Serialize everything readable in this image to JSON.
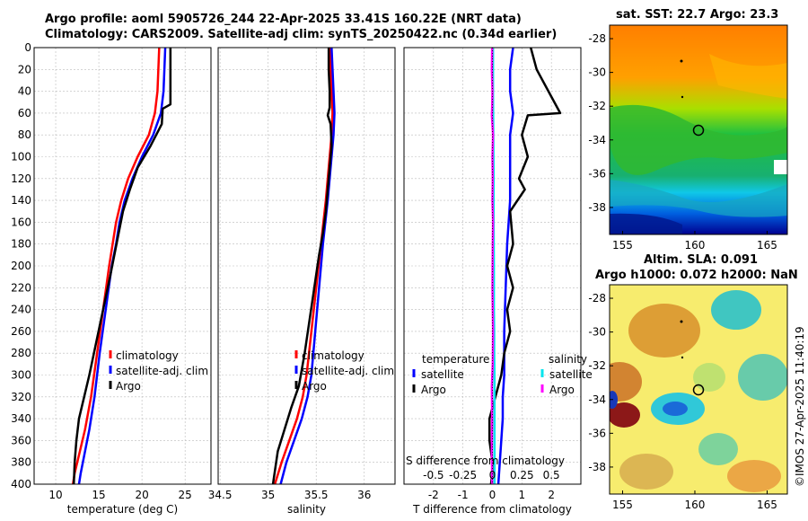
{
  "header": {
    "title_line1": "Argo profile: aoml 5905726_244 22-Apr-2025 33.41S 160.22E (NRT data)",
    "title_line2": "Climatology: CARS2009. Satellite-adj clim: synTS_20250422.nc (0.34d earlier)"
  },
  "maps": {
    "sst_title": "sat. SST: 22.7 Argo: 23.3",
    "sla_title_line1": "Altim. SLA: 0.091",
    "sla_title_line2": "Argo h1000: 0.072 h2000: NaN",
    "lat_ticks": [
      -28,
      -30,
      -32,
      -34,
      -36,
      -38
    ],
    "lon_ticks": [
      155,
      160,
      165
    ],
    "argo_position": {
      "lon": 160.22,
      "lat": -33.41
    }
  },
  "stamp": "©IMOS 27-Apr-2025 11:40:19",
  "chart_data": [
    {
      "type": "line",
      "name": "temperature",
      "xlabel": "temperature (deg C)",
      "ylabel": "",
      "xlim": [
        7.5,
        28
      ],
      "ylim": [
        400,
        0
      ],
      "xticks": [
        10,
        15,
        20,
        25
      ],
      "yticks": [
        0,
        20,
        40,
        60,
        80,
        100,
        120,
        140,
        160,
        180,
        200,
        220,
        240,
        260,
        280,
        300,
        320,
        340,
        360,
        380,
        400
      ],
      "grid": true,
      "legend": {
        "position": "lower-right",
        "entries": [
          "climatology",
          "satellite-adj. clim",
          "Argo"
        ]
      },
      "series": [
        {
          "name": "climatology",
          "color": "#ff0000",
          "x": [
            22.0,
            21.9,
            21.8,
            21.5,
            20.8,
            19.5,
            18.4,
            17.6,
            17.0,
            16.6,
            16.2,
            15.5,
            14.8,
            14.1,
            13.4,
            12.8,
            12.2,
            12.0
          ],
          "y": [
            0,
            20,
            40,
            60,
            80,
            100,
            120,
            140,
            160,
            180,
            200,
            240,
            280,
            320,
            350,
            370,
            390,
            400
          ]
        },
        {
          "name": "satellite-adj. clim",
          "color": "#0000ff",
          "x": [
            22.7,
            22.6,
            22.5,
            22.2,
            21.3,
            20.0,
            18.9,
            18.0,
            17.4,
            17.0,
            16.5,
            15.8,
            15.1,
            14.5,
            13.9,
            13.4,
            12.9,
            12.7
          ],
          "y": [
            0,
            20,
            40,
            60,
            80,
            100,
            120,
            140,
            160,
            180,
            200,
            240,
            280,
            320,
            350,
            370,
            390,
            400
          ]
        },
        {
          "name": "Argo",
          "color": "#000000",
          "x": [
            23.3,
            23.3,
            23.3,
            23.3,
            22.4,
            22.3,
            21.0,
            19.5,
            18.6,
            17.8,
            17.3,
            16.8,
            16.3,
            15.5,
            14.7,
            13.9,
            13.3,
            12.7,
            12.4,
            12.2,
            12.1
          ],
          "y": [
            0,
            20,
            40,
            52,
            56,
            70,
            90,
            110,
            130,
            150,
            170,
            190,
            210,
            240,
            270,
            300,
            320,
            340,
            360,
            380,
            400
          ]
        }
      ]
    },
    {
      "type": "line",
      "name": "salinity",
      "xlabel": "salinity",
      "ylabel": "",
      "xlim": [
        34.48,
        36.32
      ],
      "ylim": [
        400,
        0
      ],
      "xticks": [
        34.5,
        35,
        35.5,
        36
      ],
      "grid": true,
      "legend": {
        "position": "lower-right",
        "entries": [
          "climatology",
          "satellite-adj. clim",
          "Argo"
        ]
      },
      "series": [
        {
          "name": "climatology",
          "color": "#ff0000",
          "x": [
            35.65,
            35.65,
            35.66,
            35.67,
            35.66,
            35.64,
            35.6,
            35.55,
            35.5,
            35.45,
            35.4,
            35.36,
            35.3,
            35.22,
            35.14,
            35.07
          ],
          "y": [
            0,
            20,
            40,
            60,
            80,
            100,
            140,
            180,
            220,
            260,
            300,
            320,
            340,
            360,
            380,
            400
          ]
        },
        {
          "name": "satellite-adj. clim",
          "color": "#0000ff",
          "x": [
            35.66,
            35.67,
            35.68,
            35.69,
            35.68,
            35.66,
            35.62,
            35.57,
            35.53,
            35.49,
            35.45,
            35.41,
            35.35,
            35.27,
            35.19,
            35.13
          ],
          "y": [
            0,
            20,
            40,
            60,
            80,
            100,
            140,
            180,
            220,
            260,
            300,
            320,
            340,
            360,
            380,
            400
          ]
        },
        {
          "name": "Argo",
          "color": "#000000",
          "x": [
            35.63,
            35.63,
            35.64,
            35.64,
            35.62,
            35.65,
            35.66,
            35.64,
            35.62,
            35.6,
            35.57,
            35.53,
            35.48,
            35.43,
            35.38,
            35.32,
            35.24,
            35.17,
            35.1,
            35.05
          ],
          "y": [
            0,
            20,
            40,
            55,
            62,
            70,
            90,
            110,
            130,
            150,
            170,
            190,
            220,
            250,
            280,
            310,
            330,
            350,
            370,
            400
          ]
        }
      ]
    },
    {
      "type": "line",
      "name": "differences",
      "xlabel": "T difference from climatology",
      "ylabel": "",
      "xlim": [
        -3,
        3
      ],
      "ylim": [
        400,
        0
      ],
      "xticks": [
        -2,
        -1,
        0,
        1,
        2
      ],
      "secondary_axis": {
        "label": "S difference from climatology",
        "ticks": [
          "-0.5",
          "-0.25",
          "0",
          "0.25",
          "0.5"
        ],
        "values": [
          -0.5,
          -0.25,
          0,
          0.25,
          0.5
        ]
      },
      "grid": true,
      "legend": {
        "position": "lower",
        "entries": [
          "temperature",
          "satellite",
          "Argo",
          "salinity",
          "satellite",
          "Argo"
        ]
      },
      "series": [
        {
          "name": "temperature satellite",
          "color": "#0000ff",
          "x": [
            0.7,
            0.6,
            0.6,
            0.7,
            0.6,
            0.6,
            0.6,
            0.5,
            0.45,
            0.4,
            0.4,
            0.4,
            0.35,
            0.35,
            0.3,
            0.25,
            0.2
          ],
          "y": [
            0,
            20,
            40,
            60,
            80,
            100,
            140,
            180,
            220,
            260,
            280,
            300,
            320,
            340,
            360,
            380,
            400
          ]
        },
        {
          "name": "temperature Argo",
          "color": "#000000",
          "x": [
            1.3,
            1.5,
            1.9,
            2.3,
            1.2,
            1.0,
            1.2,
            0.9,
            1.1,
            0.6,
            0.7,
            0.5,
            0.7,
            0.5,
            0.6,
            0.4,
            0.3,
            0.1,
            -0.1,
            -0.1,
            0.0,
            0.0,
            -0.05
          ],
          "y": [
            0,
            20,
            40,
            60,
            62,
            80,
            100,
            120,
            130,
            150,
            180,
            200,
            220,
            240,
            260,
            280,
            300,
            320,
            340,
            360,
            380,
            390,
            400
          ]
        },
        {
          "name": "salinity satellite",
          "color": "#00e5ee",
          "x": [
            0.02,
            0.02,
            0.03,
            0.04,
            0.04,
            0.05,
            0.05,
            0.06,
            0.06,
            0.07,
            0.07,
            0.07,
            0.07,
            0.07
          ],
          "y": [
            0,
            40,
            80,
            120,
            160,
            200,
            240,
            260,
            280,
            300,
            320,
            340,
            380,
            400
          ]
        },
        {
          "name": "salinity Argo",
          "color": "#ff00ff",
          "x": [
            -0.01,
            -0.02,
            0.0,
            -0.01,
            -0.02,
            0.02,
            0.0,
            0.01,
            0.0,
            0.02,
            0.01,
            0.0,
            0.02,
            0.01,
            -0.02,
            -0.01,
            -0.02,
            -0.01
          ],
          "y": [
            0,
            20,
            40,
            55,
            62,
            80,
            100,
            120,
            140,
            160,
            180,
            220,
            260,
            290,
            310,
            340,
            370,
            400
          ]
        }
      ]
    }
  ]
}
